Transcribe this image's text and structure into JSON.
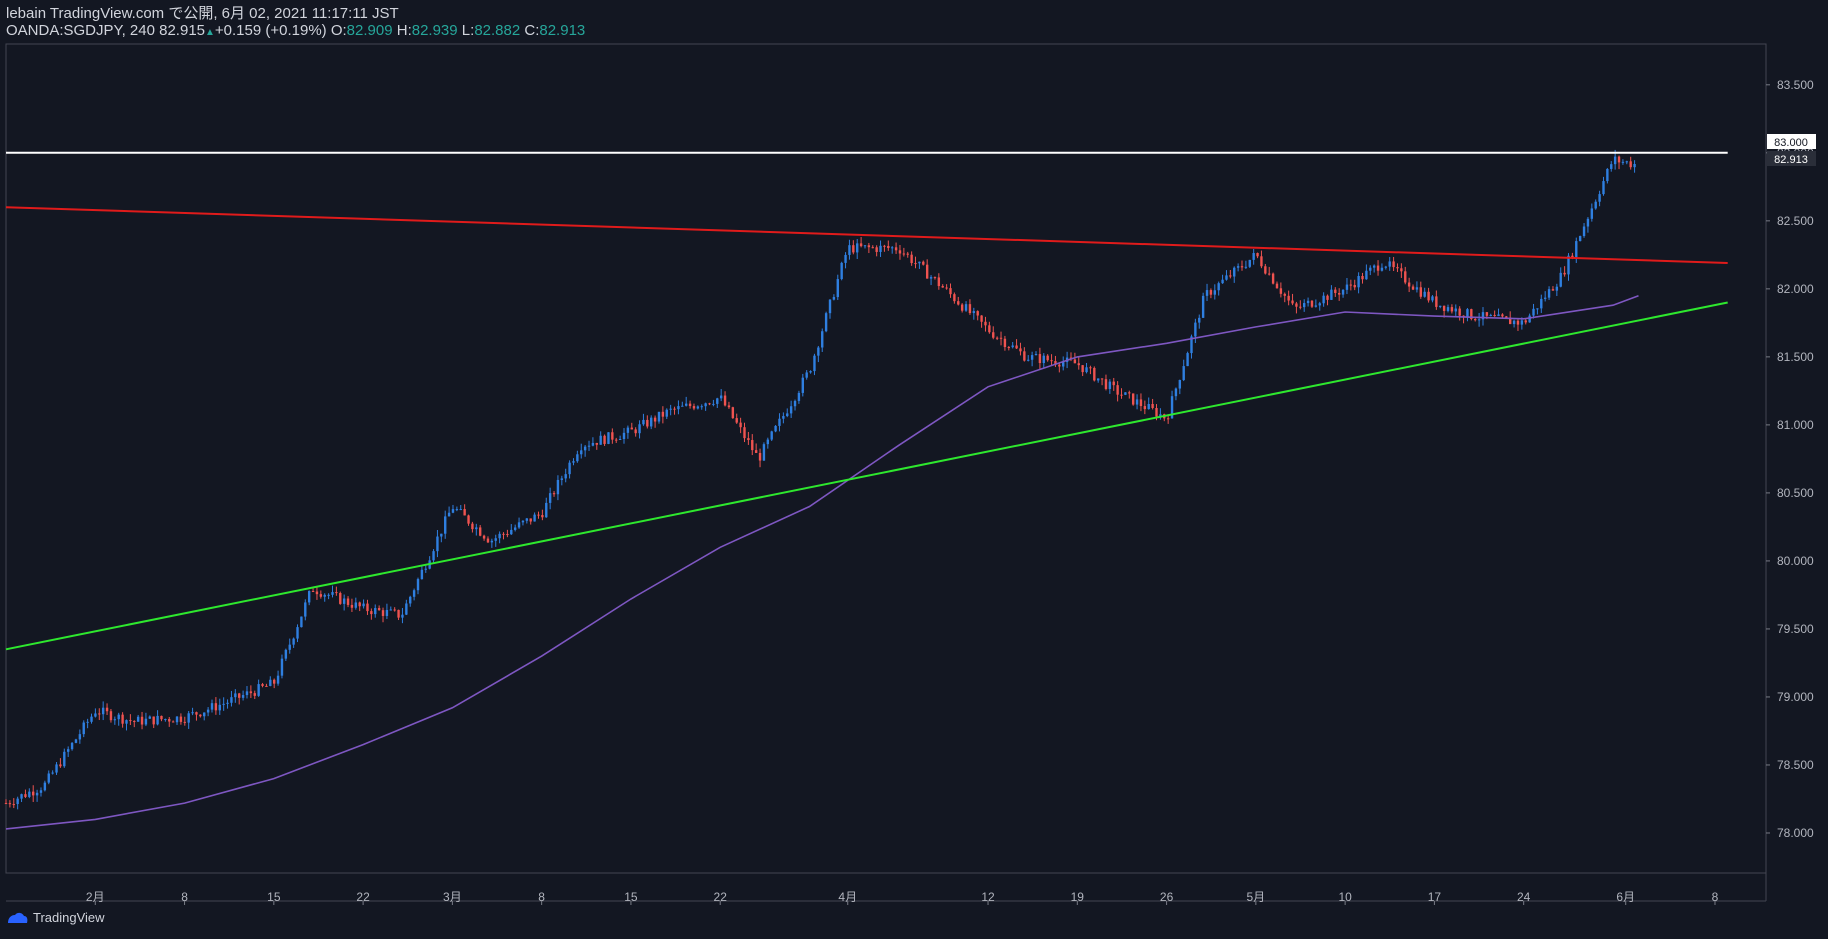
{
  "header": {
    "publish_line": "lebain TradingView.com で公開, 6月 02, 2021 11:17:11 JST",
    "symbol_line": "OANDA:SGDJPY, 240 82.915",
    "change": "+0.159 (+0.19%)",
    "o_label": "O:",
    "o_value": "82.909",
    "h_label": "H:",
    "h_value": "82.939",
    "l_label": "L:",
    "l_value": "82.882",
    "c_label": "C:",
    "c_value": "82.913"
  },
  "footer": {
    "brand": "TradingView",
    "logo_icon": "tradingview-logo-icon"
  },
  "colors": {
    "background": "#131722",
    "up": "#2f7fe0",
    "down": "#ef5350",
    "ma": "#7e57c2",
    "resistance": "#e01b1b",
    "support": "#2ee82e",
    "level": "#ffffff"
  },
  "chart_data": {
    "type": "line",
    "title": "",
    "xlabel": "",
    "ylabel": "",
    "x_ticks": [
      "2月",
      "8",
      "15",
      "22",
      "3月",
      "8",
      "15",
      "22",
      "4月",
      "12",
      "19",
      "26",
      "5月",
      "10",
      "17",
      "24",
      "6月",
      "8"
    ],
    "y_ticks": [
      "83.500",
      "83.000",
      "82.500",
      "82.000",
      "81.500",
      "81.000",
      "80.500",
      "80.000",
      "79.500",
      "79.000",
      "78.500",
      "78.000"
    ],
    "ylim": [
      77.5,
      83.8
    ],
    "price_labels": {
      "level": "83.000",
      "last": "82.913"
    },
    "series": [
      {
        "kind": "price",
        "x": [
          "2021-01-25",
          "2021-01-28",
          "2021-02-01",
          "2021-02-04",
          "2021-02-08",
          "2021-02-11",
          "2021-02-15",
          "2021-02-18",
          "2021-02-22",
          "2021-02-25",
          "2021-03-01",
          "2021-03-04",
          "2021-03-08",
          "2021-03-11",
          "2021-03-15",
          "2021-03-18",
          "2021-03-22",
          "2021-03-25",
          "2021-03-29",
          "2021-04-01",
          "2021-04-05",
          "2021-04-08",
          "2021-04-12",
          "2021-04-15",
          "2021-04-19",
          "2021-04-22",
          "2021-04-26",
          "2021-04-29",
          "2021-05-03",
          "2021-05-06",
          "2021-05-10",
          "2021-05-13",
          "2021-05-17",
          "2021-05-20",
          "2021-05-24",
          "2021-05-27",
          "2021-05-31",
          "2021-06-02"
        ],
        "y": [
          78.22,
          78.35,
          78.9,
          78.82,
          78.85,
          78.95,
          79.1,
          79.8,
          79.65,
          79.6,
          80.4,
          80.15,
          80.35,
          80.85,
          80.95,
          81.1,
          81.2,
          80.75,
          81.4,
          82.3,
          82.3,
          82.05,
          81.7,
          81.5,
          81.45,
          81.25,
          81.05,
          81.95,
          82.25,
          81.85,
          82.0,
          82.2,
          81.9,
          81.8,
          81.75,
          82.1,
          82.95,
          82.91
        ]
      },
      {
        "kind": "moving-average",
        "x": [
          "2021-01-25",
          "2021-02-01",
          "2021-02-08",
          "2021-02-15",
          "2021-02-22",
          "2021-03-01",
          "2021-03-08",
          "2021-03-15",
          "2021-03-22",
          "2021-03-29",
          "2021-04-05",
          "2021-04-12",
          "2021-04-19",
          "2021-04-26",
          "2021-05-03",
          "2021-05-10",
          "2021-05-17",
          "2021-05-24",
          "2021-05-31",
          "2021-06-02"
        ],
        "y": [
          78.03,
          78.1,
          78.22,
          78.4,
          78.65,
          78.92,
          79.3,
          79.72,
          80.1,
          80.4,
          80.85,
          81.28,
          81.5,
          81.6,
          81.72,
          81.83,
          81.8,
          81.78,
          81.88,
          81.95
        ]
      },
      {
        "kind": "resistance-trendline",
        "x": [
          "2021-01-25",
          "2021-06-09"
        ],
        "y": [
          82.6,
          82.19
        ]
      },
      {
        "kind": "support-trendline",
        "x": [
          "2021-01-25",
          "2021-06-09"
        ],
        "y": [
          79.35,
          81.9
        ]
      },
      {
        "kind": "horizontal-level",
        "x": [
          "2021-01-25",
          "2021-06-09"
        ],
        "y": [
          83.0,
          83.0
        ]
      }
    ]
  }
}
